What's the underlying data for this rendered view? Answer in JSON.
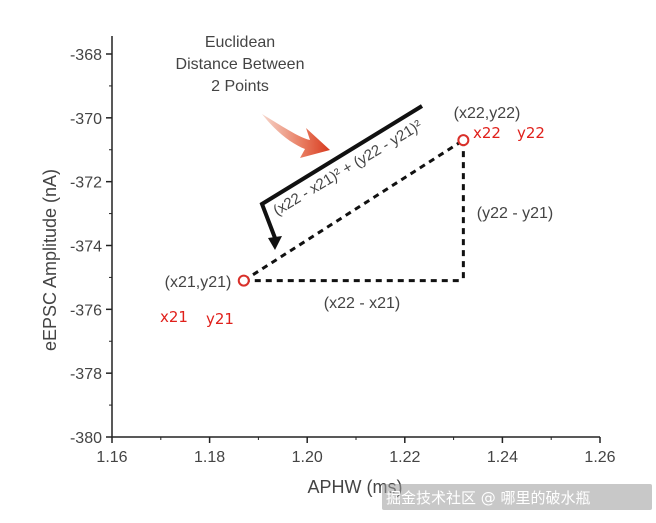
{
  "chart_data": {
    "type": "scatter",
    "title": "",
    "xlabel": "APHW (ms)",
    "ylabel": "eEPSC Amplitude (nA)",
    "xlim": [
      1.16,
      1.26
    ],
    "ylim": [
      -380,
      -368
    ],
    "x_ticks": [
      1.16,
      1.18,
      1.2,
      1.22,
      1.24,
      1.26
    ],
    "x_tick_labels": [
      "1.16",
      "1.18",
      "1.20",
      "1.22",
      "1.24",
      "1.26"
    ],
    "y_ticks": [
      -368,
      -370,
      -372,
      -374,
      -376,
      -378,
      -380
    ],
    "y_tick_labels": [
      "-368",
      "-370",
      "-372",
      "-374",
      "-376",
      "-378",
      "-380"
    ],
    "points": [
      {
        "x": 1.187,
        "y": -375.1,
        "label": "(x21,y21)",
        "red_x": "x21",
        "red_y": "y21"
      },
      {
        "x": 1.232,
        "y": -370.7,
        "label": "(x22,y22)",
        "red_x": "x22",
        "red_y": "y22"
      }
    ],
    "legs": {
      "horizontal": "(x22 - x21)",
      "vertical": "(y22 - y21)"
    },
    "annotation": {
      "text_lines": [
        "Euclidean",
        "Distance Between",
        "2 Points"
      ],
      "formula": "(x22 - x21)² + (y22 - y21)²"
    },
    "grid": false,
    "legend": "none"
  },
  "watermark": "掘金技术社区 @ 哪里的破水瓶"
}
